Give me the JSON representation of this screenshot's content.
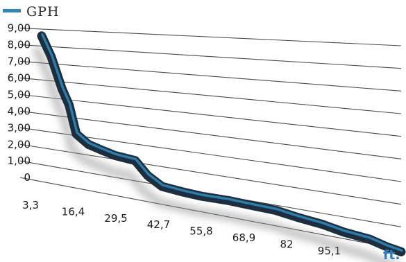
{
  "chart_data": {
    "type": "line",
    "style": "3d-perspective-ribbon",
    "categories": [
      "3,3",
      "16,4",
      "29,5",
      "42,7",
      "55,8",
      "68,9",
      "82",
      "95,1"
    ],
    "yticks": [
      "9,00",
      "8,00",
      "7,00",
      "6,00",
      "5,00",
      "4,00",
      "3,00",
      "2,00",
      "1,00",
      "0"
    ],
    "ylim": [
      0,
      9
    ],
    "unit_label": "ft.",
    "grid": true,
    "legend_position": "top-left",
    "series": [
      {
        "name": "GPH",
        "color": "#1d2f3f",
        "highlight_color": "#2f86b8",
        "x": [
          3.3,
          6,
          9,
          11,
          13,
          16.4,
          20,
          24,
          29.5,
          33,
          37,
          42.7,
          48,
          55.8,
          62,
          68.9,
          75,
          82,
          88,
          95.1,
          100,
          104
        ],
        "y": [
          8.6,
          7.4,
          5.6,
          4.7,
          3.1,
          2.6,
          2.4,
          2.2,
          2.1,
          1.4,
          0.95,
          0.85,
          0.8,
          0.82,
          0.78,
          0.75,
          0.6,
          0.48,
          0.3,
          0.2,
          0.0,
          -0.1
        ]
      }
    ]
  }
}
